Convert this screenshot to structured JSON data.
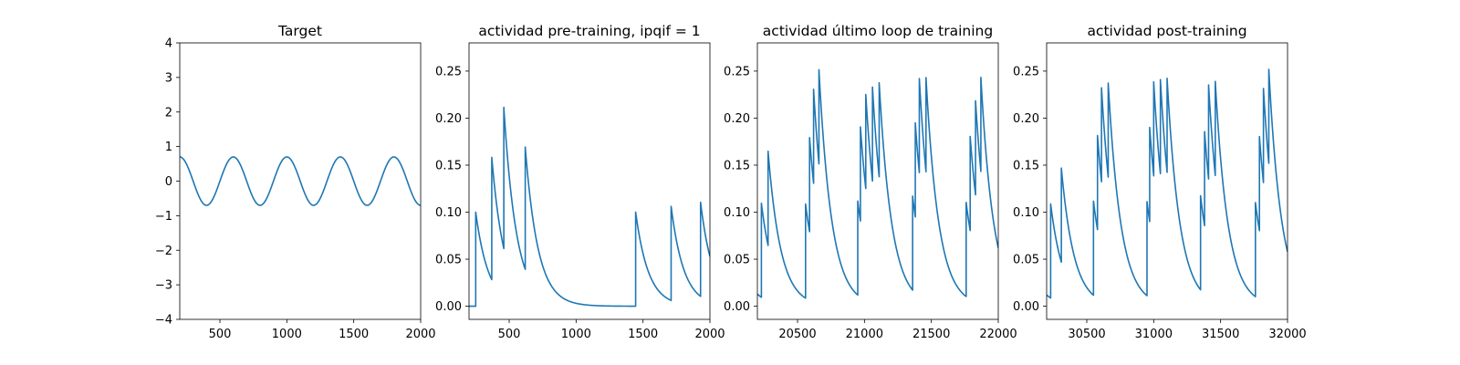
{
  "colors": {
    "series": "#1f77b4",
    "axes": "#000000",
    "background": "#ffffff"
  },
  "chart_data": [
    {
      "type": "line",
      "title": "Target",
      "xlim": [
        200,
        2000
      ],
      "ylim": [
        -4,
        4
      ],
      "xticks": [
        500,
        1000,
        1500,
        2000
      ],
      "yticks": [
        -4,
        -3,
        -2,
        -1,
        0,
        1,
        2,
        3,
        4
      ],
      "grid": false,
      "series": [
        {
          "kind": "sine",
          "amplitude": 0.7,
          "period": 400,
          "peak_x": 600,
          "x_range": [
            200,
            2000
          ]
        }
      ]
    },
    {
      "type": "line",
      "title": "actividad pre-training, ipqif = 1",
      "xlim": [
        200,
        2000
      ],
      "ylim": [
        -0.014,
        0.28
      ],
      "xticks": [
        500,
        1000,
        1500,
        2000
      ],
      "yticks": [
        0.0,
        0.05,
        0.1,
        0.15,
        0.2,
        0.25
      ],
      "grid": false,
      "series": [
        {
          "kind": "spikes",
          "x_start": 200,
          "x_end": 2000,
          "y_start": 0.0,
          "tau": 95,
          "spikes": [
            [
              250,
              0.1
            ],
            [
              370,
              0.13
            ],
            [
              460,
              0.15
            ],
            [
              620,
              0.13
            ],
            [
              1445,
              0.1
            ],
            [
              1710,
              0.1
            ],
            [
              1930,
              0.1
            ]
          ]
        }
      ]
    },
    {
      "type": "line",
      "title": "actividad último loop de training",
      "xlim": [
        20200,
        22000
      ],
      "ylim": [
        -0.014,
        0.28
      ],
      "xticks": [
        20500,
        21000,
        21500,
        22000
      ],
      "yticks": [
        0.0,
        0.05,
        0.1,
        0.15,
        0.2,
        0.25
      ],
      "grid": false,
      "series": [
        {
          "kind": "spikes",
          "x_start": 20200,
          "x_end": 22000,
          "y_start": 0.013,
          "tau": 95,
          "spikes": [
            [
              20230,
              0.1
            ],
            [
              20280,
              0.1
            ],
            [
              20560,
              0.1
            ],
            [
              20590,
              0.1
            ],
            [
              20620,
              0.1
            ],
            [
              20660,
              0.1
            ],
            [
              20950,
              0.1
            ],
            [
              20970,
              0.1
            ],
            [
              21010,
              0.1
            ],
            [
              21060,
              0.1
            ],
            [
              21110,
              0.1
            ],
            [
              21360,
              0.1
            ],
            [
              21380,
              0.1
            ],
            [
              21410,
              0.1
            ],
            [
              21460,
              0.1
            ],
            [
              21760,
              0.1
            ],
            [
              21790,
              0.1
            ],
            [
              21830,
              0.1
            ],
            [
              21870,
              0.1
            ]
          ]
        }
      ]
    },
    {
      "type": "line",
      "title": "actividad post-training",
      "xlim": [
        30200,
        32000
      ],
      "ylim": [
        -0.014,
        0.28
      ],
      "xticks": [
        30500,
        31000,
        31500,
        32000
      ],
      "yticks": [
        0.0,
        0.05,
        0.1,
        0.15,
        0.2,
        0.25
      ],
      "grid": false,
      "series": [
        {
          "kind": "spikes",
          "x_start": 30200,
          "x_end": 32000,
          "y_start": 0.012,
          "tau": 95,
          "spikes": [
            [
              30230,
              0.1
            ],
            [
              30310,
              0.1
            ],
            [
              30550,
              0.1
            ],
            [
              30580,
              0.1
            ],
            [
              30610,
              0.1
            ],
            [
              30660,
              0.1
            ],
            [
              30950,
              0.1
            ],
            [
              30970,
              0.1
            ],
            [
              31000,
              0.1
            ],
            [
              31050,
              0.1
            ],
            [
              31100,
              0.1
            ],
            [
              31350,
              0.1
            ],
            [
              31380,
              0.1
            ],
            [
              31410,
              0.1
            ],
            [
              31460,
              0.1
            ],
            [
              31760,
              0.1
            ],
            [
              31790,
              0.1
            ],
            [
              31820,
              0.1
            ],
            [
              31860,
              0.1
            ]
          ]
        }
      ]
    }
  ]
}
